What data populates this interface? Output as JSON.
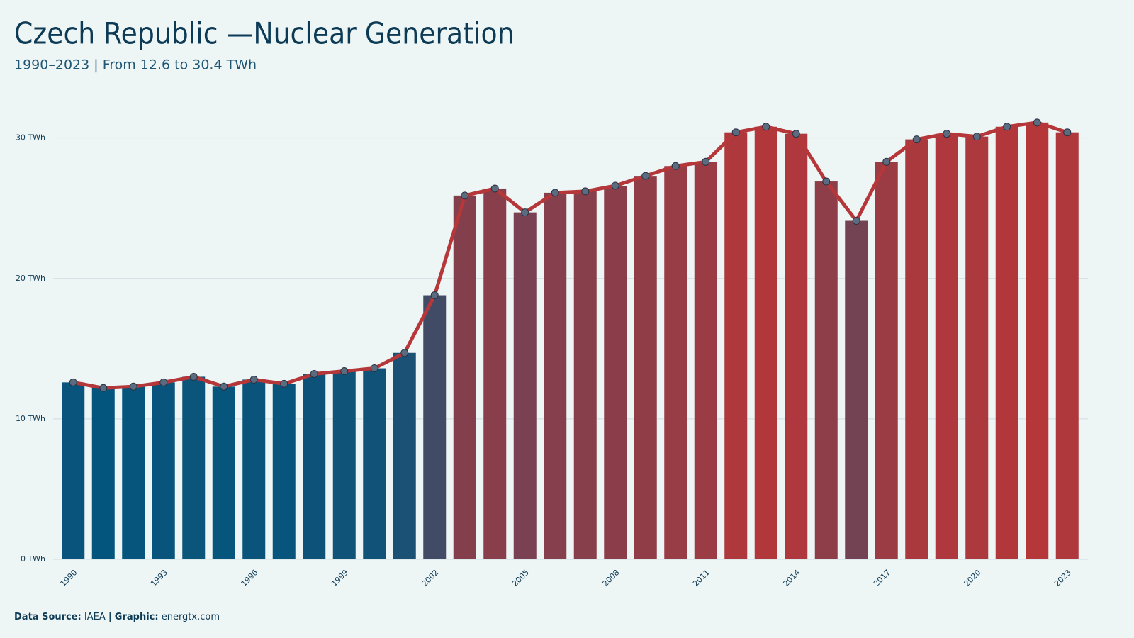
{
  "chart_data": {
    "type": "bar_line",
    "title": "Czech Republic —Nuclear Generation",
    "subtitle": "1990–2023 | From 12.6 to 30.4 TWh",
    "categories": [
      "1990",
      null,
      null,
      "1993",
      null,
      null,
      "1996",
      null,
      null,
      "1999",
      null,
      null,
      "2002",
      null,
      null,
      "2005",
      null,
      null,
      "2008",
      null,
      null,
      "2011",
      null,
      null,
      "2014",
      null,
      null,
      "2017",
      null,
      null,
      "2020",
      null,
      null,
      "2023"
    ],
    "values": [
      12.6,
      12.2,
      12.3,
      12.6,
      13.0,
      12.3,
      12.8,
      12.5,
      13.2,
      13.4,
      13.6,
      14.7,
      18.8,
      25.9,
      26.4,
      24.7,
      26.1,
      26.2,
      26.6,
      27.3,
      28.0,
      28.3,
      30.4,
      30.8,
      30.3,
      26.9,
      24.1,
      28.3,
      29.9,
      30.3,
      30.1,
      30.8,
      31.1,
      30.4
    ],
    "bar_colors": [
      "#04557d",
      "#b5373a"
    ],
    "line_color": "#b5373a",
    "marker_color": "#5b6b80",
    "ylim": [
      0,
      32
    ],
    "yticks": [
      {
        "value": 0,
        "label": "0 TWh"
      },
      {
        "value": 10,
        "label": "10 TWh"
      },
      {
        "value": 20,
        "label": "20 TWh"
      },
      {
        "value": 30,
        "label": "30 TWh"
      }
    ],
    "grid": true,
    "footer": {
      "source_label": "Data Source:",
      "source": "IAEA",
      "separator": "|",
      "graphic_label": "Graphic:",
      "graphic": "energtx.com"
    }
  }
}
